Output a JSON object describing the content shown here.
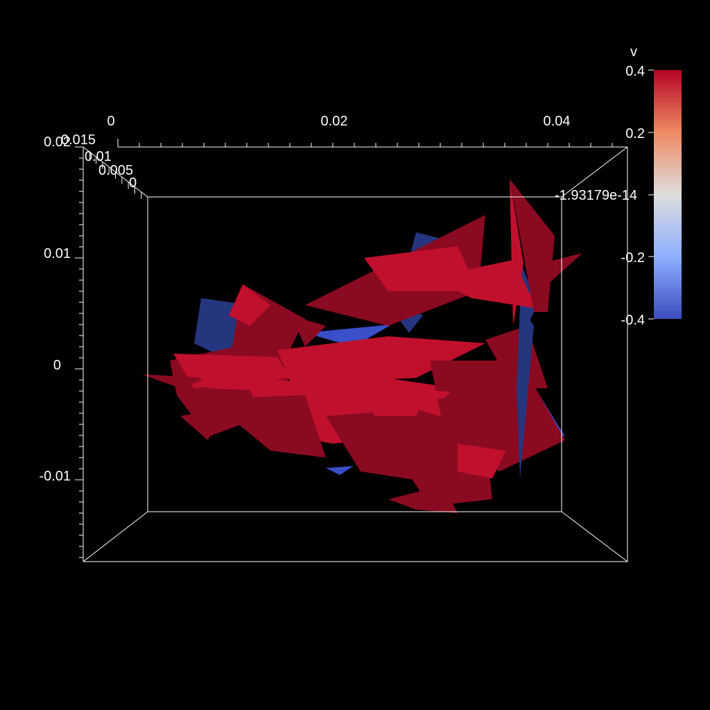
{
  "colors": {
    "background": "#000000",
    "axes": "#ffffff",
    "surface_high": "#c0102e",
    "surface_mid": "#8a0a22",
    "surface_low": "#3a4fc8",
    "surface_low_dark": "#25357e"
  },
  "axes": {
    "x_ticks": [
      "0",
      "0.02",
      "0.04"
    ],
    "y_ticks": [
      "0.02",
      "0.01",
      "0",
      "-0.01"
    ],
    "z_ticks": [
      "0.015",
      "0.01",
      "0.005",
      "0"
    ],
    "z_extra_label": "-1.93179e-14"
  },
  "legend": {
    "title": "v",
    "ticks": [
      "0.4",
      "0.2",
      "-1.93179e-14",
      "-0.2",
      "-0.4"
    ],
    "min": -0.4,
    "max": 0.4,
    "colormap": [
      "#3b4cc0",
      "#dddddd",
      "#b40426"
    ]
  }
}
